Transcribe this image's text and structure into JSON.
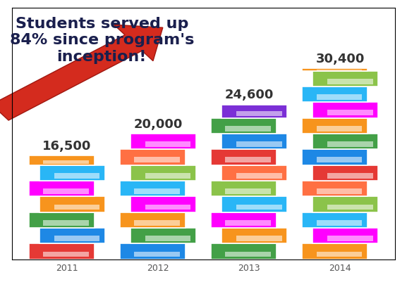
{
  "chart_data": {
    "type": "bar",
    "title": "Students served up 84% since program's inception!",
    "categories": [
      "2011",
      "2012",
      "2013",
      "2014"
    ],
    "values": [
      16500,
      20000,
      24600,
      30400
    ],
    "value_labels": [
      "16,500",
      "20,000",
      "24,600",
      "30,400"
    ],
    "data_labels": true,
    "colors": [
      "#f7941d",
      "#ff00ff",
      "#7b2fd6",
      "#f7941d"
    ],
    "ylim": [
      0,
      40000
    ],
    "grid": false,
    "tick_labels": "x"
  }
}
